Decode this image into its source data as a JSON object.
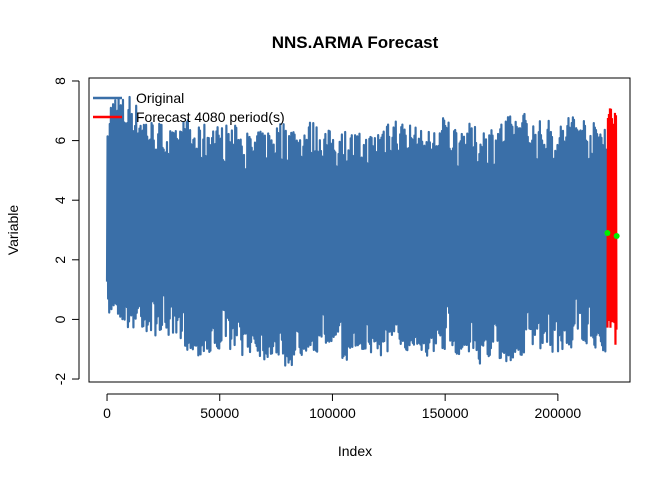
{
  "chart_data": {
    "type": "line",
    "title": "NNS.ARMA Forecast",
    "xlabel": "Index",
    "ylabel": "Variable",
    "xlim": [
      -8000,
      232000
    ],
    "ylim": [
      -2.1,
      8.1
    ],
    "x_ticks": [
      0,
      50000,
      100000,
      150000,
      200000
    ],
    "x_tick_labels": [
      "0",
      "50000",
      "100000",
      "150000",
      "200000"
    ],
    "y_ticks": [
      -2,
      0,
      2,
      4,
      6,
      8
    ],
    "y_tick_labels": [
      "-2",
      "0",
      "2",
      "4",
      "6",
      "8"
    ],
    "grid": false,
    "legend_position": "top-left",
    "colors": {
      "original": "#3a6fa8",
      "forecast": "#ff0000",
      "marker": "#00ee00"
    },
    "series": [
      {
        "name": "Original",
        "color": "#3a6fa8",
        "x": [
          0,
          1500,
          3000,
          5000,
          8000,
          10000,
          15000,
          20000,
          25000,
          30000,
          35000,
          40000,
          45000,
          50000,
          55000,
          60000,
          65000,
          70000,
          75000,
          80000,
          85000,
          90000,
          95000,
          100000,
          105000,
          110000,
          115000,
          120000,
          125000,
          130000,
          135000,
          140000,
          145000,
          150000,
          155000,
          160000,
          165000,
          170000,
          175000,
          180000,
          185000,
          190000,
          195000,
          200000,
          205000,
          210000,
          215000,
          220000,
          222000
        ],
        "upper": [
          6.0,
          7.3,
          7.7,
          7.6,
          7.4,
          7.6,
          7.0,
          6.7,
          6.6,
          6.3,
          6.8,
          6.4,
          6.7,
          6.5,
          6.6,
          6.4,
          6.2,
          6.4,
          6.6,
          6.7,
          6.4,
          6.7,
          6.5,
          6.3,
          6.4,
          6.3,
          6.2,
          6.4,
          7.0,
          6.7,
          6.6,
          6.3,
          6.4,
          6.9,
          6.5,
          6.6,
          6.4,
          6.5,
          6.7,
          6.9,
          7.0,
          6.6,
          6.8,
          6.4,
          7.0,
          6.9,
          6.6,
          6.7,
          6.8
        ],
        "lower": [
          -0.1,
          0.0,
          0.3,
          0.1,
          -0.2,
          -0.4,
          -0.3,
          -0.6,
          -0.4,
          -0.9,
          -1.0,
          -1.2,
          -1.4,
          -1.0,
          -1.0,
          -1.2,
          -1.1,
          -1.4,
          -1.2,
          -1.7,
          -1.4,
          -1.0,
          -1.2,
          -0.9,
          -1.5,
          -1.0,
          -1.2,
          -1.3,
          -1.2,
          -1.1,
          -1.0,
          -1.2,
          -1.3,
          -1.0,
          -1.2,
          -1.1,
          -1.5,
          -1.3,
          -1.7,
          -1.4,
          -1.2,
          -1.0,
          -1.2,
          -1.1,
          -1.0,
          -0.9,
          -0.9,
          -1.2,
          -1.0
        ]
      },
      {
        "name": "Forecast 4080 period(s)",
        "color": "#ff0000",
        "x_start": 222000,
        "x_end": 226080,
        "upper": 7.2,
        "lower": -0.9
      }
    ],
    "markers": [
      {
        "x": 222000,
        "y": 2.9
      },
      {
        "x": 226080,
        "y": 2.8
      }
    ]
  }
}
